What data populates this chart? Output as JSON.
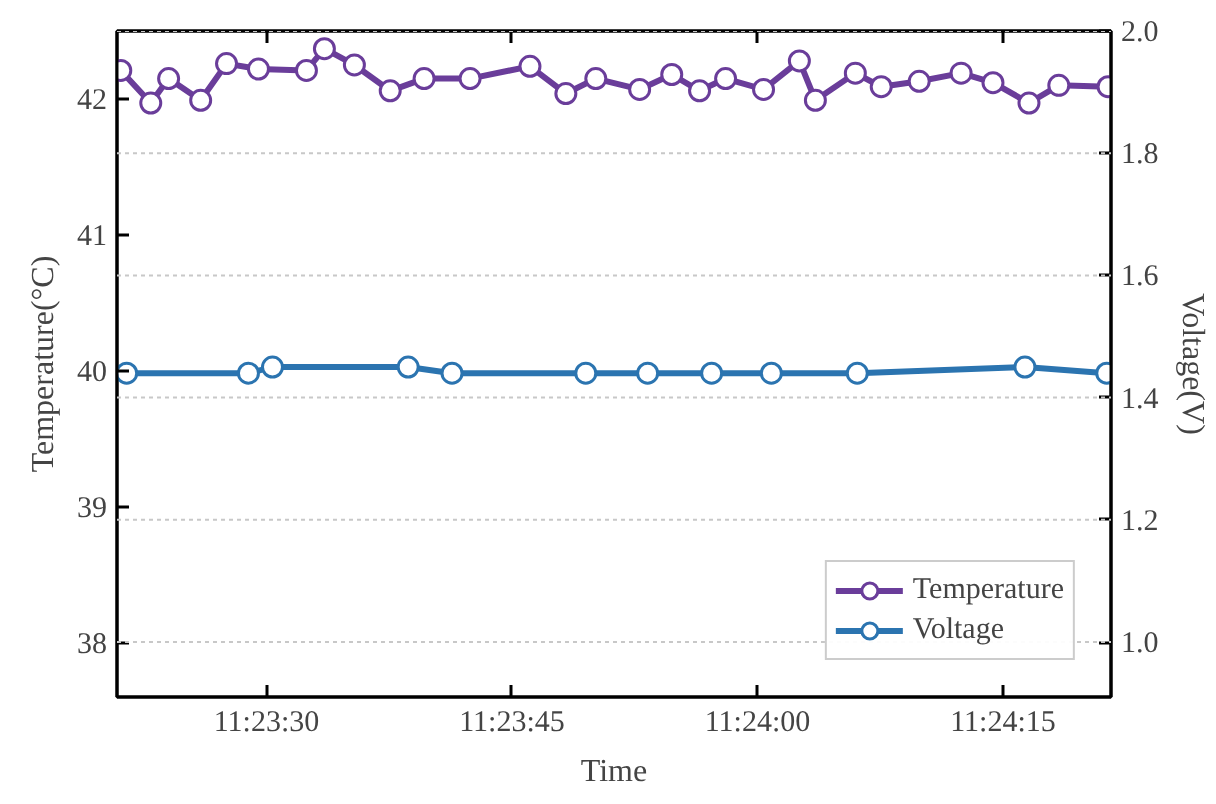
{
  "chart_data": {
    "type": "line",
    "xlabel": "Time",
    "ylabel": "Temperature(°C)",
    "y2label": "Voltage(V)",
    "xlim": [
      11.38913,
      11.406
    ],
    "xticks": [
      {
        "value": 11.391667,
        "label": "11:23:30"
      },
      {
        "value": 11.395833,
        "label": "11:23:45"
      },
      {
        "value": 11.4,
        "label": "11:24:00"
      },
      {
        "value": 11.404167,
        "label": "11:24:15"
      }
    ],
    "ylim": [
      37.6,
      42.5
    ],
    "yticks": [
      38,
      39,
      40,
      41,
      42
    ],
    "y2lim": [
      0.91,
      2.0
    ],
    "y2ticks": [
      {
        "value": 1.0,
        "label": "1.0"
      },
      {
        "value": 1.2,
        "label": "1.2"
      },
      {
        "value": 1.4,
        "label": "1.4"
      },
      {
        "value": 1.6,
        "label": "1.6"
      },
      {
        "value": 1.8,
        "label": "1.8"
      },
      {
        "value": 2.0,
        "label": "2.0"
      }
    ],
    "grid": "y2",
    "legend": "bottom right",
    "marker": "circle",
    "line_style": "solid",
    "series": [
      {
        "name": "Temperature",
        "color": "#6a3d9a",
        "x": [
          11.389194,
          11.389703,
          11.390006,
          11.39055,
          11.390989,
          11.391531,
          11.392345,
          11.39265,
          11.393159,
          11.393767,
          11.394342,
          11.395122,
          11.396139,
          11.396748,
          11.397256,
          11.398,
          11.398545,
          11.399017,
          11.399459,
          11.400103,
          11.400711,
          11.400983,
          11.401661,
          11.4021,
          11.402745,
          11.403456,
          11.403997,
          11.404608,
          11.405114,
          11.40595
        ],
        "values": [
          42.21,
          41.97,
          42.15,
          41.99,
          42.26,
          42.22,
          42.21,
          42.37,
          42.25,
          42.06,
          42.15,
          42.15,
          42.24,
          42.04,
          42.15,
          42.07,
          42.18,
          42.06,
          42.15,
          42.07,
          42.28,
          41.99,
          42.19,
          42.09,
          42.13,
          42.19,
          42.12,
          41.97,
          42.1,
          42.09
        ]
      },
      {
        "name": "Voltage",
        "color": "#2b74b0",
        "axis": "y2",
        "x": [
          11.389294,
          11.391361,
          11.391769,
          11.394072,
          11.394816,
          11.397086,
          11.398136,
          11.399222,
          11.400236,
          11.401694,
          11.404539,
          11.405928
        ],
        "values": [
          1.44,
          1.44,
          1.45,
          1.45,
          1.44,
          1.44,
          1.44,
          1.44,
          1.44,
          1.44,
          1.45,
          1.44
        ]
      }
    ]
  }
}
